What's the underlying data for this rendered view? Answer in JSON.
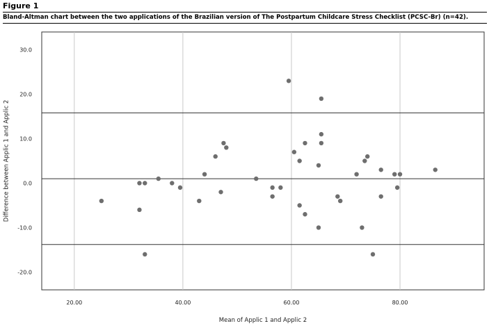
{
  "figure_label": "Figure 1",
  "caption": "Bland-Altman chart between the two applications of the Brazilian version of The Postpartum Childcare Stress Checklist (PCSC-Br) (n=42).",
  "chart_data": {
    "type": "scatter",
    "xlabel": "Mean of Applic 1 and Applic 2",
    "ylabel": "Difference between Applic 1 and Applic 2",
    "xlim": [
      14,
      95.5
    ],
    "ylim": [
      -24,
      34
    ],
    "x_ticks": [
      20,
      40,
      60,
      80
    ],
    "x_tick_labels": [
      "20.00",
      "40.00",
      "60.00",
      "80.00"
    ],
    "y_ticks": [
      30,
      20,
      10,
      0,
      -10,
      -20
    ],
    "y_tick_labels": [
      "30.0",
      "20.0",
      "10.0",
      "0.0",
      "-10.0",
      "-20.0"
    ],
    "grid": "vertical",
    "reference_lines": [
      15.8,
      1.0,
      -13.8
    ],
    "point_color": "#6e6e6e",
    "points": [
      [
        25,
        -4
      ],
      [
        32,
        0
      ],
      [
        32,
        -6
      ],
      [
        33,
        0
      ],
      [
        33,
        -16
      ],
      [
        35.5,
        1
      ],
      [
        38,
        0
      ],
      [
        39.5,
        -1
      ],
      [
        43,
        -4
      ],
      [
        44,
        2
      ],
      [
        46,
        6
      ],
      [
        47,
        -2
      ],
      [
        47.5,
        9
      ],
      [
        48,
        8
      ],
      [
        53.5,
        1
      ],
      [
        56.5,
        -1
      ],
      [
        56.5,
        -3
      ],
      [
        58,
        -1
      ],
      [
        59.5,
        23
      ],
      [
        60.5,
        7
      ],
      [
        61.5,
        5
      ],
      [
        61.5,
        -5
      ],
      [
        62.5,
        9
      ],
      [
        62.5,
        -7
      ],
      [
        65,
        4
      ],
      [
        65,
        -10
      ],
      [
        65.5,
        19
      ],
      [
        65.5,
        11
      ],
      [
        65.5,
        9
      ],
      [
        68.5,
        -3
      ],
      [
        69,
        -4
      ],
      [
        72,
        2
      ],
      [
        73,
        -10
      ],
      [
        73.5,
        5
      ],
      [
        74,
        6
      ],
      [
        75,
        -16
      ],
      [
        76.5,
        3
      ],
      [
        76.5,
        -3
      ],
      [
        79,
        2
      ],
      [
        79.5,
        -1
      ],
      [
        80,
        2
      ],
      [
        86.5,
        3
      ]
    ]
  }
}
